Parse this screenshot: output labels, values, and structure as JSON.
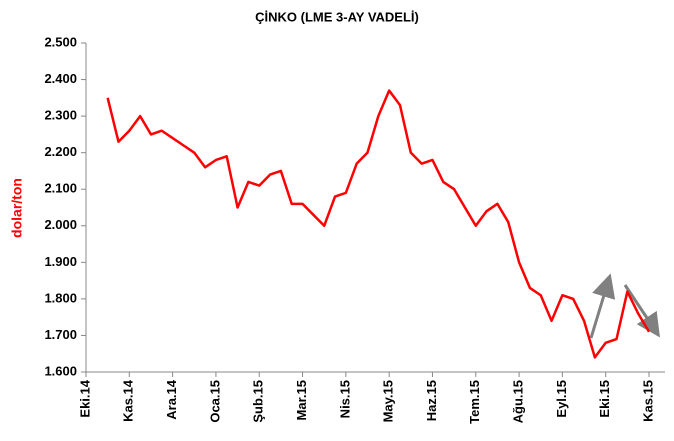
{
  "chart_data": {
    "type": "line",
    "title": "ÇİNKO (LME 3-AY VADELİ)",
    "y_label": "dolar/ton",
    "categories": [
      "Eki.14",
      null,
      null,
      null,
      "Kas.14",
      null,
      null,
      null,
      "Ara.14",
      null,
      null,
      null,
      "Oca.15",
      null,
      null,
      null,
      "Şub.15",
      null,
      null,
      null,
      "Mar.15",
      null,
      null,
      null,
      "Nis.15",
      null,
      null,
      null,
      "May.15",
      null,
      null,
      null,
      "Haz.15",
      null,
      null,
      null,
      "Tem.15",
      null,
      null,
      null,
      "Ağu.15",
      null,
      null,
      null,
      "Eyl.15",
      null,
      null,
      null,
      "Eki.15",
      null,
      null,
      null,
      "Kas.15"
    ],
    "series": [
      {
        "name": "Çinko",
        "color": "#ff0000",
        "values": [
          null,
          null,
          2350,
          2230,
          2260,
          2300,
          2250,
          2260,
          2240,
          2220,
          2200,
          2160,
          2180,
          2190,
          2050,
          2120,
          2110,
          2140,
          2150,
          2060,
          2060,
          2030,
          2000,
          2080,
          2090,
          2170,
          2200,
          2300,
          2370,
          2330,
          2200,
          2170,
          2180,
          2120,
          2100,
          2050,
          2000,
          2040,
          2060,
          2010,
          1900,
          1830,
          1810,
          1740,
          1810,
          1800,
          1740,
          1640,
          1680,
          1690,
          1820,
          1760,
          1710
        ]
      }
    ],
    "ylim": [
      1600,
      2500
    ],
    "yticks": [
      {
        "value": 1600,
        "label": "1.600"
      },
      {
        "value": 1700,
        "label": "1.700"
      },
      {
        "value": 1800,
        "label": "1.800"
      },
      {
        "value": 1900,
        "label": "1.900"
      },
      {
        "value": 2000,
        "label": "2.000"
      },
      {
        "value": 2100,
        "label": "2.100"
      },
      {
        "value": 2200,
        "label": "2.200"
      },
      {
        "value": 2300,
        "label": "2.300"
      },
      {
        "value": 2400,
        "label": "2.400"
      },
      {
        "value": 2500,
        "label": "2.500"
      }
    ]
  }
}
